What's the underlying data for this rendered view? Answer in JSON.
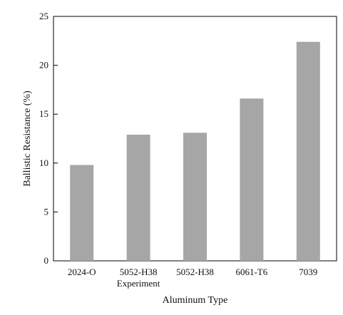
{
  "chart_data": {
    "type": "bar",
    "title": "",
    "categories": [
      "2024-O",
      "5052-H38",
      "5052-H38",
      "6061-T6",
      "7039"
    ],
    "category_sublabels": [
      "",
      "Experiment",
      "",
      "",
      ""
    ],
    "values": [
      9.8,
      12.9,
      13.1,
      16.6,
      22.4
    ],
    "xlabel": "Aluminum Type",
    "ylabel": "Ballistic Resistance (%)",
    "ylim": [
      0,
      25
    ],
    "yticks": [
      0,
      5,
      10,
      15,
      20,
      25
    ],
    "grid": false,
    "legend": "none",
    "colors": {
      "bar": "#a6a6a6",
      "axis": "#000000"
    }
  }
}
